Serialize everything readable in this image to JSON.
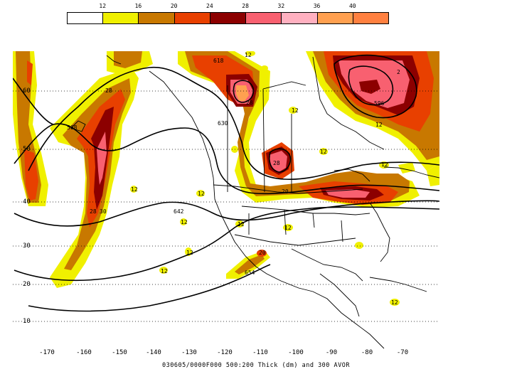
{
  "legend": {
    "labels": [
      "12",
      "16",
      "20",
      "24",
      "28",
      "32",
      "36",
      "40"
    ],
    "colors": [
      "#ffffff",
      "#f0f000",
      "#c87800",
      "#e84000",
      "#8c0000",
      "#f86070",
      "#ffb0c0",
      "#ffa050",
      "#ff8040"
    ]
  },
  "axes": {
    "lon_labels": [
      "-170",
      "-160",
      "-150",
      "-140",
      "-130",
      "-120",
      "-110",
      "-100",
      "-90",
      "-80",
      "-70"
    ],
    "lat_labels": [
      "60",
      "50",
      "40",
      "30",
      "20",
      "10"
    ]
  },
  "contour_labels": [
    "12",
    "12",
    "12",
    "12",
    "12",
    "12",
    "12",
    "12",
    "12",
    "12",
    "12",
    "12",
    "12",
    "28",
    "28",
    "20",
    "20",
    "30",
    "618",
    "630",
    "642",
    "654",
    "568",
    "596",
    "28",
    "28",
    "2"
  ],
  "caption": "030605/0000F000 500:200 Thick (dm) and 300 AVOR"
}
